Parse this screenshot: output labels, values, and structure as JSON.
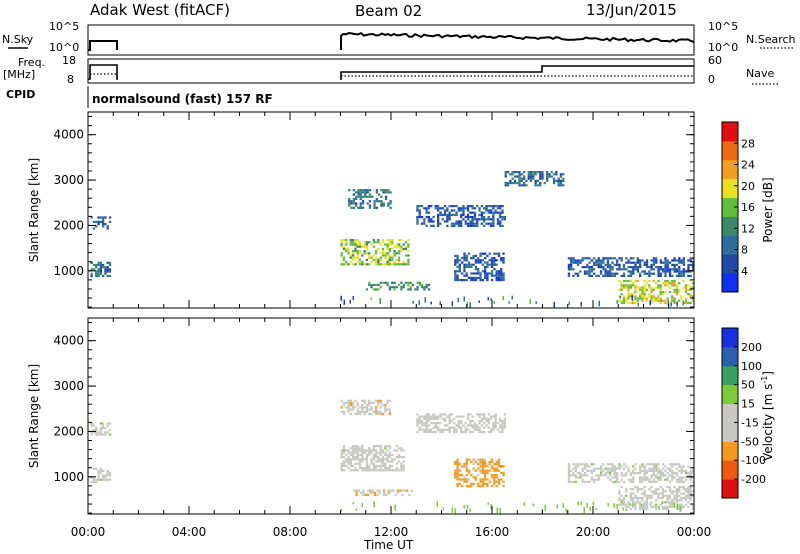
{
  "header": {
    "station": "Adak West (fitACF)",
    "beam": "Beam 02",
    "date": "13/Jun/2015"
  },
  "aux": {
    "nsky_label": "N.Sky",
    "freq_label": "Freq.",
    "freq_unit": "[MHz]",
    "cpid_label": "CPID",
    "nsearch_label": "N.Search",
    "nave_label": "Nave",
    "cpid_text": "normalsound (fast) 157 RF",
    "noise_ticks_left": [
      "10^5",
      "10^0"
    ],
    "noise_ticks_right": [
      "10^5",
      "10^0"
    ],
    "freq_ticks": [
      "18",
      "8"
    ],
    "nave_ticks": [
      "60",
      "0"
    ]
  },
  "colors": {
    "power_scale": [
      "#1030f0",
      "#1f4aa8",
      "#2c6f9a",
      "#3a8a6a",
      "#5fbf3c",
      "#e8e020",
      "#f0a020",
      "#f06a10",
      "#e01010"
    ],
    "velocity_scale": [
      "#e01010",
      "#f05a10",
      "#f59a20",
      "#c8c8c0",
      "#c8c8c0",
      "#7ccc3a",
      "#3aa060",
      "#2d5fb0",
      "#1a2fe0"
    ]
  },
  "chart_data": [
    {
      "type": "heatmap",
      "panel": "power",
      "xlabel": "",
      "ylabel": "Slant Range [km]",
      "xlim": [
        0,
        24
      ],
      "ylim": [
        180,
        4500
      ],
      "yticks": [
        "4000",
        "3000",
        "2000",
        "1000"
      ],
      "colorbar": {
        "label": "Power [dB]",
        "ticks": [
          "28",
          "24",
          "20",
          "16",
          "12",
          "8",
          "4"
        ],
        "range": [
          0,
          30
        ]
      },
      "echo_regions": [
        {
          "t0": 0.1,
          "t1": 0.9,
          "r0": 1950,
          "r1": 2200,
          "value": 6
        },
        {
          "t0": 0.1,
          "t1": 0.9,
          "r0": 900,
          "r1": 1200,
          "value": 8
        },
        {
          "t0": 10.0,
          "t1": 12.7,
          "r0": 1150,
          "r1": 1700,
          "value": 16
        },
        {
          "t0": 10.3,
          "t1": 12.0,
          "r0": 2400,
          "r1": 2800,
          "value": 9
        },
        {
          "t0": 11.0,
          "t1": 13.5,
          "r0": 580,
          "r1": 760,
          "value": 12
        },
        {
          "t0": 13.0,
          "t1": 16.5,
          "r0": 2000,
          "r1": 2450,
          "value": 6
        },
        {
          "t0": 14.5,
          "t1": 16.5,
          "r0": 800,
          "r1": 1400,
          "value": 6
        },
        {
          "t0": 16.5,
          "t1": 18.8,
          "r0": 2900,
          "r1": 3200,
          "value": 8
        },
        {
          "t0": 19.0,
          "t1": 24.0,
          "r0": 900,
          "r1": 1300,
          "value": 6
        },
        {
          "t0": 21.0,
          "t1": 24.0,
          "r0": 300,
          "r1": 800,
          "value": 18
        }
      ]
    },
    {
      "type": "heatmap",
      "panel": "velocity",
      "xlabel": "Time UT",
      "ylabel": "Slant Range [km]",
      "xlim": [
        0,
        24
      ],
      "ylim": [
        180,
        4500
      ],
      "xticks": [
        "00:00",
        "04:00",
        "08:00",
        "12:00",
        "16:00",
        "20:00",
        "00:00"
      ],
      "yticks": [
        "4000",
        "3000",
        "2000",
        "1000"
      ],
      "colorbar": {
        "label": "Velocity [m s^-1]",
        "ticks": [
          "200",
          "100",
          "50",
          "15",
          "-15",
          "-50",
          "-100",
          "-200"
        ],
        "range": [
          -250,
          250
        ]
      },
      "echo_regions": [
        {
          "t0": 0.1,
          "t1": 0.9,
          "r0": 1950,
          "r1": 2200,
          "value": 0
        },
        {
          "t0": 0.1,
          "t1": 0.9,
          "r0": 900,
          "r1": 1200,
          "value": 0
        },
        {
          "t0": 10.0,
          "t1": 12.5,
          "r0": 1150,
          "r1": 1700,
          "value": 0
        },
        {
          "t0": 10.0,
          "t1": 12.0,
          "r0": 2400,
          "r1": 2700,
          "value": -60
        },
        {
          "t0": 10.5,
          "t1": 12.8,
          "r0": 580,
          "r1": 720,
          "value": -70
        },
        {
          "t0": 13.0,
          "t1": 16.5,
          "r0": 2000,
          "r1": 2400,
          "value": -40
        },
        {
          "t0": 14.5,
          "t1": 16.5,
          "r0": 800,
          "r1": 1400,
          "value": -110
        },
        {
          "t0": 19.0,
          "t1": 24.0,
          "r0": 900,
          "r1": 1300,
          "value": 0
        },
        {
          "t0": 21.0,
          "t1": 24.0,
          "r0": 300,
          "r1": 800,
          "value": 0
        }
      ]
    }
  ]
}
